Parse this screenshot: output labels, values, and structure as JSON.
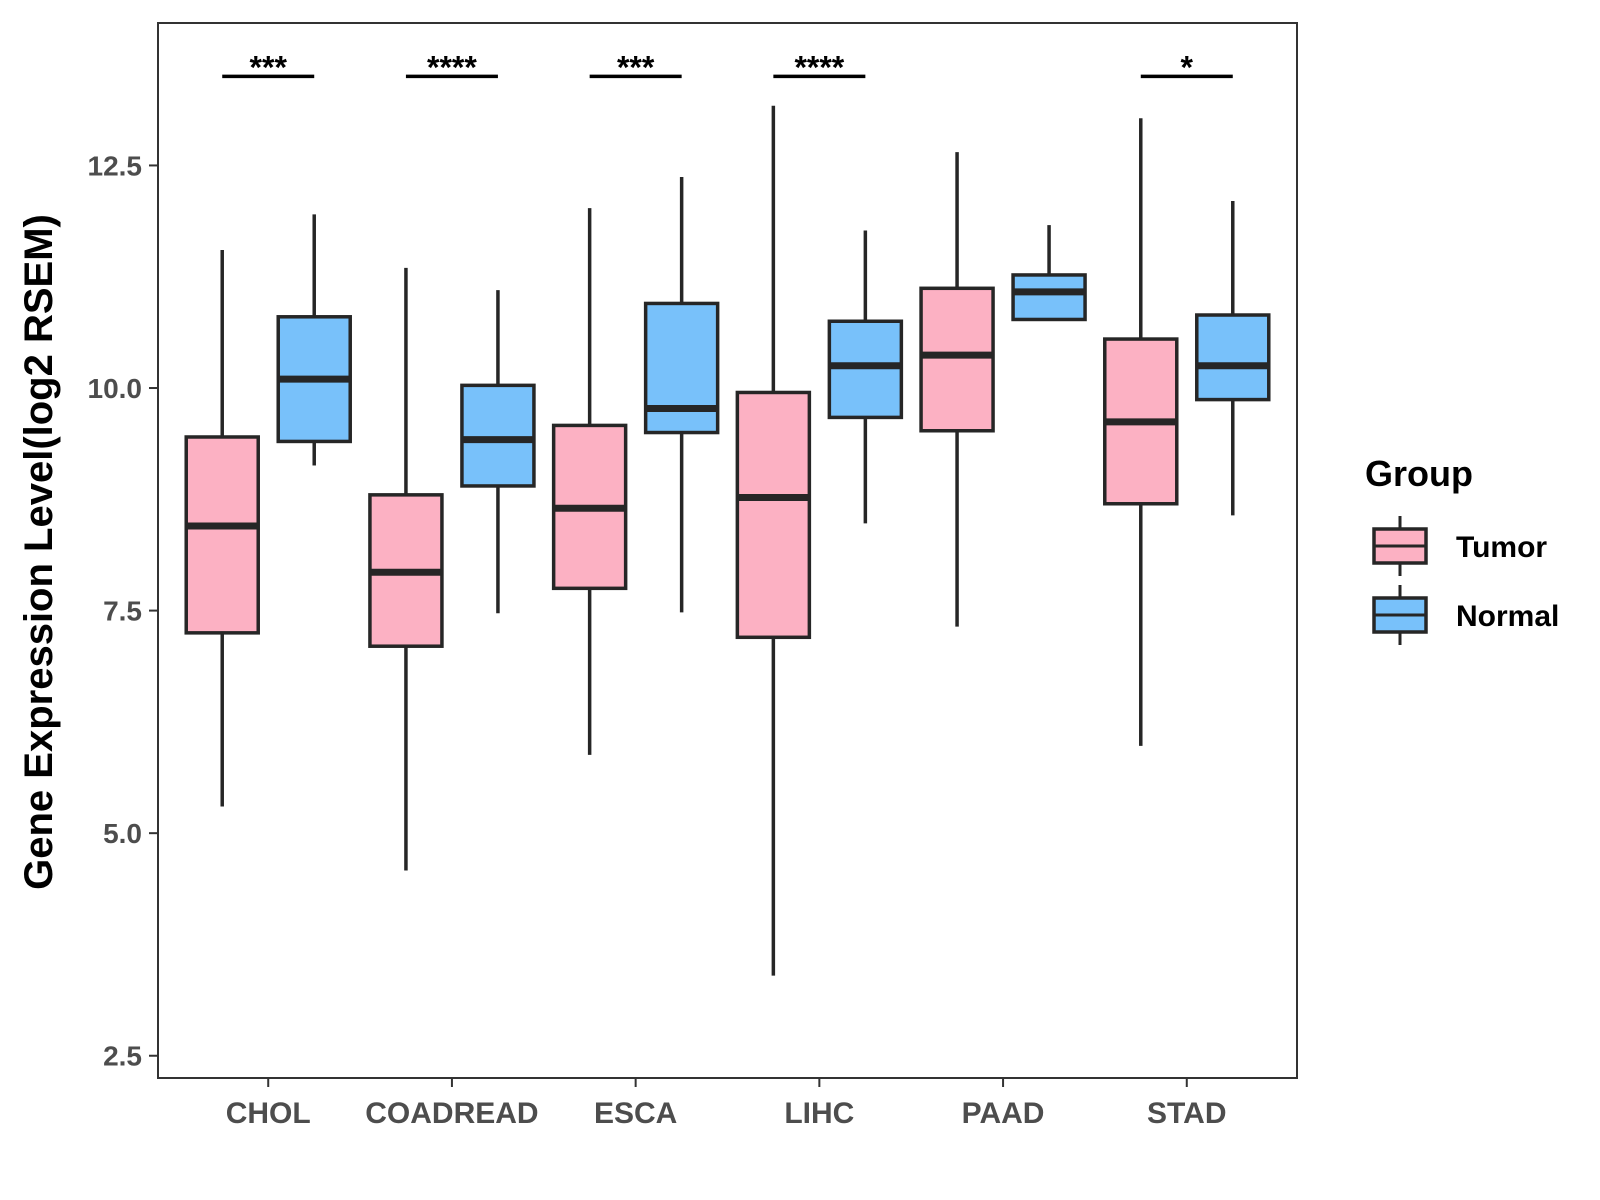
{
  "chart_data": {
    "type": "boxplot",
    "title": "",
    "xlabel": "",
    "ylabel": "Gene Expression Level(log2 RSEM)",
    "ylim": [
      2.25,
      14.1
    ],
    "yticks": [
      2.5,
      5.0,
      7.5,
      10.0,
      12.5
    ],
    "ytick_labels": [
      "2.5",
      "5.0",
      "7.5",
      "10.0",
      "12.5"
    ],
    "grid": false,
    "categories": [
      "CHOL",
      "COADREAD",
      "ESCA",
      "LIHC",
      "PAAD",
      "STAD"
    ],
    "legend": {
      "title": "Group",
      "position": "right"
    },
    "series": [
      {
        "name": "Tumor",
        "color": "#fcb1c3",
        "boxes": [
          {
            "whisker_low": 5.3,
            "q1": 7.25,
            "median": 8.45,
            "q3": 9.45,
            "whisker_high": 11.55
          },
          {
            "whisker_low": 4.58,
            "q1": 7.1,
            "median": 7.93,
            "q3": 8.8,
            "whisker_high": 11.35
          },
          {
            "whisker_low": 5.88,
            "q1": 7.75,
            "median": 8.65,
            "q3": 9.58,
            "whisker_high": 12.02
          },
          {
            "whisker_low": 3.4,
            "q1": 7.2,
            "median": 8.77,
            "q3": 9.95,
            "whisker_high": 13.17
          },
          {
            "whisker_low": 7.32,
            "q1": 9.52,
            "median": 10.37,
            "q3": 11.12,
            "whisker_high": 12.65
          },
          {
            "whisker_low": 5.98,
            "q1": 8.7,
            "median": 9.62,
            "q3": 10.55,
            "whisker_high": 13.03
          }
        ]
      },
      {
        "name": "Normal",
        "color": "#78c1fa",
        "boxes": [
          {
            "whisker_low": 9.13,
            "q1": 9.4,
            "median": 10.1,
            "q3": 10.8,
            "whisker_high": 11.95
          },
          {
            "whisker_low": 7.47,
            "q1": 8.9,
            "median": 9.42,
            "q3": 10.03,
            "whisker_high": 11.1
          },
          {
            "whisker_low": 7.48,
            "q1": 9.5,
            "median": 9.77,
            "q3": 10.95,
            "whisker_high": 12.37
          },
          {
            "whisker_low": 8.48,
            "q1": 9.67,
            "median": 10.25,
            "q3": 10.75,
            "whisker_high": 11.77
          },
          {
            "whisker_low": null,
            "q1": 10.77,
            "median": 11.08,
            "q3": 11.27,
            "whisker_high": 11.83
          },
          {
            "whisker_low": 8.57,
            "q1": 9.87,
            "median": 10.25,
            "q3": 10.82,
            "whisker_high": 12.1
          }
        ]
      }
    ],
    "significance": [
      "***",
      "****",
      "***",
      "****",
      "",
      "*"
    ],
    "significance_y": 13.5
  }
}
